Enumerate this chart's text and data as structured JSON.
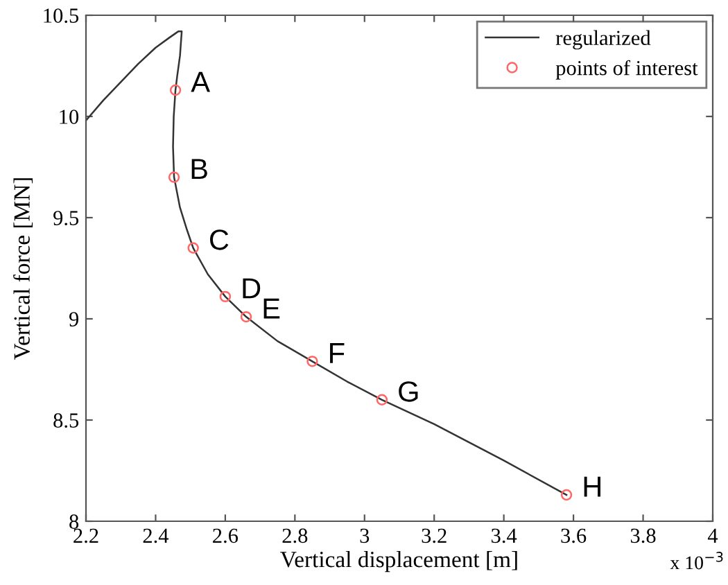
{
  "chart_data": {
    "type": "line",
    "xlabel": "Vertical displacement [m]",
    "ylabel": "Vertical force [MN]",
    "xlim": [
      2.2,
      4
    ],
    "ylim": [
      8,
      10.5
    ],
    "xticks": [
      2.2,
      2.4,
      2.6,
      2.8,
      3,
      3.2,
      3.4,
      3.6,
      3.8,
      4
    ],
    "yticks": [
      8,
      8.5,
      9,
      9.5,
      10,
      10.5
    ],
    "grid": false,
    "legend": "top right",
    "series": [
      {
        "name": "regularized",
        "color": "#333333",
        "marker": "none",
        "line_style": "solid",
        "x": [
          2.2,
          2.25,
          2.3,
          2.35,
          2.4,
          2.44,
          2.465,
          2.475,
          2.47,
          2.462,
          2.457,
          2.452,
          2.45,
          2.453,
          2.47,
          2.49,
          2.508,
          2.55,
          2.6,
          2.66,
          2.75,
          2.85,
          2.95,
          3.05,
          3.2,
          3.4,
          3.58
        ],
        "values": [
          9.98,
          10.08,
          10.17,
          10.26,
          10.34,
          10.39,
          10.42,
          10.42,
          10.3,
          10.2,
          10.13,
          10.0,
          9.85,
          9.7,
          9.55,
          9.44,
          9.35,
          9.22,
          9.11,
          9.01,
          8.89,
          8.79,
          8.69,
          8.6,
          8.48,
          8.3,
          8.13
        ]
      },
      {
        "name": "points of interest",
        "type": "scatter",
        "color": "#ff6666",
        "marker": "circle",
        "x": [
          2.457,
          2.453,
          2.508,
          2.6,
          2.66,
          2.85,
          3.05,
          3.58
        ],
        "values": [
          10.13,
          9.7,
          9.35,
          9.11,
          9.01,
          8.79,
          8.6,
          8.13
        ]
      }
    ],
    "annotations": [
      {
        "text": "A",
        "x": 2.457,
        "y": 10.13
      },
      {
        "text": "B",
        "x": 2.453,
        "y": 9.7
      },
      {
        "text": "C",
        "x": 2.508,
        "y": 9.35
      },
      {
        "text": "D",
        "x": 2.6,
        "y": 9.11
      },
      {
        "text": "E",
        "x": 2.66,
        "y": 9.01
      },
      {
        "text": "F",
        "x": 2.85,
        "y": 8.79
      },
      {
        "text": "G",
        "x": 3.05,
        "y": 8.6
      },
      {
        "text": "H",
        "x": 3.58,
        "y": 8.13
      },
      "x 10$^{−3}$"
    ]
  }
}
